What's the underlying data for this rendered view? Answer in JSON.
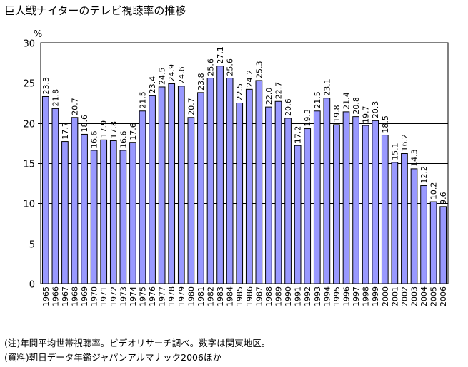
{
  "title": "巨人戦ナイターのテレビ視聴率の推移",
  "notes": {
    "note": "(注)年間平均世帯視聴率。ビデオリサーチ調べ。数字は関東地区。",
    "source": "(資料)朝日データ年鑑ジャパンアルマナック2006ほか"
  },
  "colors": {
    "bar_fill": "#9999ff",
    "bar_stroke": "#000000",
    "grid": "#000000"
  },
  "chart_data": {
    "type": "bar",
    "title": "巨人戦ナイターのテレビ視聴率の推移",
    "ylabel": "%",
    "xlabel": "",
    "ylim": [
      0,
      30
    ],
    "yticks": [
      0,
      5,
      10,
      15,
      20,
      25,
      30
    ],
    "grid": true,
    "categories": [
      "1965",
      "1966",
      "1967",
      "1968",
      "1969",
      "1970",
      "1971",
      "1972",
      "1973",
      "1974",
      "1975",
      "1976",
      "1977",
      "1978",
      "1979",
      "1980",
      "1981",
      "1982",
      "1983",
      "1984",
      "1985",
      "1986",
      "1987",
      "1988",
      "1989",
      "1990",
      "1991",
      "1992",
      "1993",
      "1994",
      "1995",
      "1996",
      "1997",
      "1998",
      "1999",
      "2000",
      "2001",
      "2002",
      "2003",
      "2004",
      "2005",
      "2006"
    ],
    "values": [
      23.3,
      21.8,
      17.7,
      20.7,
      18.6,
      16.6,
      17.9,
      17.8,
      16.6,
      17.6,
      21.5,
      23.4,
      24.5,
      24.9,
      24.6,
      20.7,
      23.8,
      25.6,
      27.1,
      25.6,
      22.5,
      24.2,
      25.3,
      22.0,
      22.7,
      20.6,
      17.2,
      19.3,
      21.5,
      23.1,
      19.8,
      21.4,
      20.8,
      19.7,
      20.3,
      18.5,
      15.1,
      16.2,
      14.3,
      12.2,
      10.2,
      9.6
    ],
    "labels": [
      "23.3",
      "21.8",
      "17.7",
      "20.7",
      "18.6",
      "16.6",
      "17.9",
      "17.8",
      "16.6",
      "17.6",
      "21.5",
      "23.4",
      "24.5",
      "24.9",
      "24.6",
      "20.7",
      "23.8",
      "25.6",
      "27.1",
      "25.6",
      "22.5",
      "24.2",
      "25.3",
      "22.0",
      "22.7",
      "20.6",
      "17.2",
      "19.3",
      "21.5",
      "23.1",
      "19.8",
      "21.4",
      "20.8",
      "19.7",
      "20.3",
      "18.5",
      "15.1",
      "16.2",
      "14.3",
      "12.2",
      "10.2",
      "9.6"
    ]
  }
}
